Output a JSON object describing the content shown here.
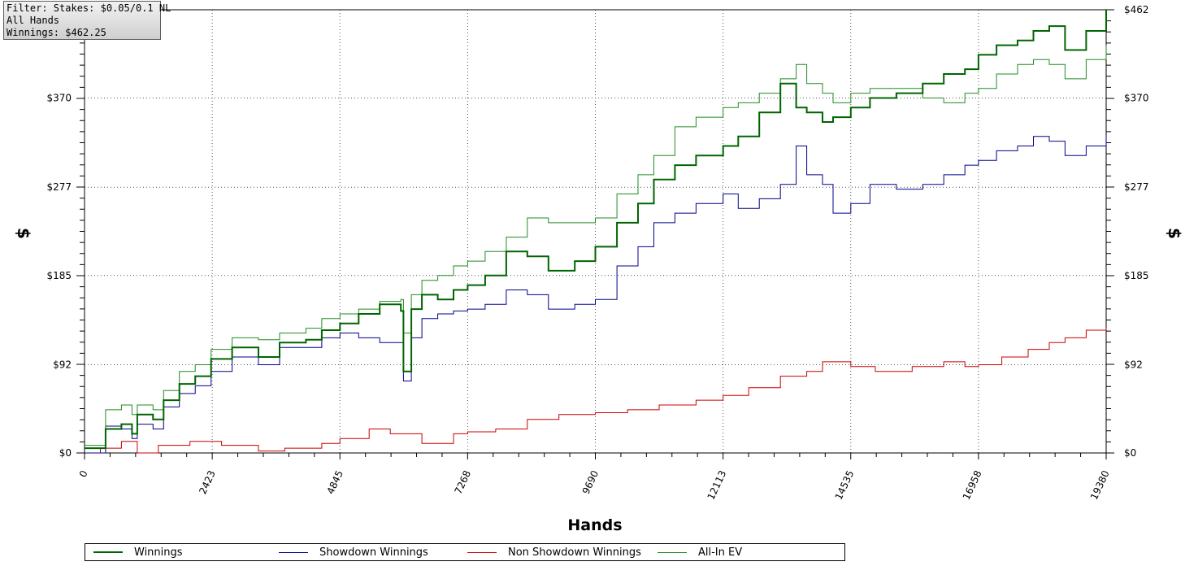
{
  "filter_box": {
    "line1": "Filter: Stakes: $0.05/0.1 NL",
    "line2": "All Hands",
    "line3": "Winnings: $462.25"
  },
  "chart_data": {
    "type": "line",
    "xlabel": "Hands",
    "ylabel_left": "$",
    "ylabel_right": "$",
    "xlim": [
      0,
      19380
    ],
    "ylim": [
      0,
      462
    ],
    "x_ticks": [
      "0",
      "2423",
      "4845",
      "7268",
      "9690",
      "12113",
      "14535",
      "16958",
      "19380"
    ],
    "x_tick_values": [
      0,
      2423,
      4845,
      7268,
      9690,
      12113,
      14535,
      16958,
      19380
    ],
    "y_ticks": [
      "$0",
      "$92",
      "$185",
      "$277",
      "$370",
      "$462"
    ],
    "y_tick_values": [
      0,
      92,
      185,
      277,
      370,
      462
    ],
    "grid": true,
    "legend_position": "bottom",
    "series": [
      {
        "name": "Winnings",
        "color": "#006400",
        "x": [
          0,
          400,
          700,
          900,
          1000,
          1300,
          1500,
          1800,
          2100,
          2400,
          2800,
          3300,
          3700,
          4200,
          4500,
          4845,
          5200,
          5600,
          6000,
          6050,
          6200,
          6400,
          6700,
          7000,
          7268,
          7600,
          8000,
          8400,
          8800,
          9300,
          9690,
          10100,
          10500,
          10800,
          11200,
          11600,
          12113,
          12400,
          12800,
          13200,
          13500,
          13700,
          14000,
          14200,
          14535,
          14900,
          15400,
          15900,
          16300,
          16700,
          16958,
          17300,
          17700,
          18000,
          18300,
          18600,
          19000,
          19380
        ],
        "y": [
          5,
          25,
          30,
          20,
          40,
          35,
          55,
          72,
          80,
          98,
          110,
          100,
          115,
          118,
          128,
          135,
          145,
          155,
          148,
          85,
          150,
          165,
          160,
          170,
          175,
          185,
          210,
          205,
          190,
          200,
          215,
          240,
          260,
          285,
          300,
          310,
          320,
          330,
          355,
          385,
          360,
          355,
          345,
          350,
          360,
          370,
          375,
          385,
          395,
          400,
          415,
          425,
          430,
          440,
          445,
          420,
          440,
          462
        ]
      },
      {
        "name": "Showdown Winnings",
        "color": "#00008b",
        "x": [
          0,
          400,
          700,
          900,
          1000,
          1300,
          1500,
          1800,
          2100,
          2400,
          2800,
          3300,
          3700,
          4200,
          4500,
          4845,
          5200,
          5600,
          6000,
          6050,
          6200,
          6400,
          6700,
          7000,
          7268,
          7600,
          8000,
          8400,
          8800,
          9300,
          9690,
          10100,
          10500,
          10800,
          11200,
          11600,
          12113,
          12400,
          12800,
          13200,
          13500,
          13700,
          14000,
          14200,
          14535,
          14900,
          15400,
          15900,
          16300,
          16700,
          16958,
          17300,
          17700,
          18000,
          18300,
          18600,
          19000,
          19380
        ],
        "y": [
          0,
          28,
          25,
          15,
          30,
          25,
          48,
          62,
          70,
          85,
          100,
          92,
          110,
          110,
          120,
          125,
          120,
          115,
          115,
          75,
          120,
          140,
          145,
          148,
          150,
          155,
          170,
          165,
          150,
          155,
          160,
          195,
          215,
          240,
          250,
          260,
          270,
          255,
          265,
          280,
          320,
          290,
          280,
          250,
          260,
          280,
          275,
          280,
          290,
          300,
          305,
          315,
          320,
          330,
          325,
          310,
          320,
          330
        ]
      },
      {
        "name": "Non Showdown Winnings",
        "color": "#cc0000",
        "x": [
          0,
          300,
          700,
          1000,
          1400,
          2000,
          2600,
          3300,
          3800,
          4500,
          4845,
          5400,
          5800,
          6400,
          7000,
          7268,
          7800,
          8400,
          9000,
          9690,
          10300,
          10900,
          11600,
          12113,
          12600,
          13200,
          13700,
          14000,
          14535,
          15000,
          15700,
          16300,
          16700,
          16958,
          17400,
          17900,
          18300,
          18600,
          19000,
          19380
        ],
        "y": [
          0,
          5,
          12,
          0,
          8,
          12,
          8,
          2,
          5,
          10,
          15,
          25,
          20,
          10,
          20,
          22,
          25,
          35,
          40,
          42,
          45,
          50,
          55,
          60,
          68,
          80,
          85,
          95,
          90,
          85,
          90,
          95,
          90,
          92,
          100,
          108,
          115,
          120,
          128,
          130
        ]
      },
      {
        "name": "All-In EV",
        "color": "#228b22",
        "x": [
          0,
          400,
          700,
          900,
          1000,
          1300,
          1500,
          1800,
          2100,
          2400,
          2800,
          3300,
          3700,
          4200,
          4500,
          4845,
          5200,
          5600,
          6000,
          6050,
          6200,
          6400,
          6700,
          7000,
          7268,
          7600,
          8000,
          8400,
          8800,
          9300,
          9690,
          10100,
          10500,
          10800,
          11200,
          11600,
          12113,
          12400,
          12800,
          13200,
          13500,
          13700,
          14000,
          14200,
          14535,
          14900,
          15400,
          15900,
          16300,
          16700,
          16958,
          17300,
          17700,
          18000,
          18300,
          18600,
          19000,
          19380
        ],
        "y": [
          8,
          45,
          50,
          40,
          50,
          45,
          65,
          85,
          92,
          108,
          120,
          118,
          125,
          130,
          140,
          145,
          150,
          158,
          160,
          125,
          165,
          180,
          185,
          195,
          200,
          210,
          225,
          245,
          240,
          240,
          245,
          270,
          290,
          310,
          340,
          350,
          360,
          365,
          375,
          390,
          405,
          385,
          375,
          365,
          375,
          380,
          380,
          370,
          365,
          375,
          380,
          395,
          405,
          410,
          405,
          390,
          410,
          425
        ]
      }
    ]
  }
}
